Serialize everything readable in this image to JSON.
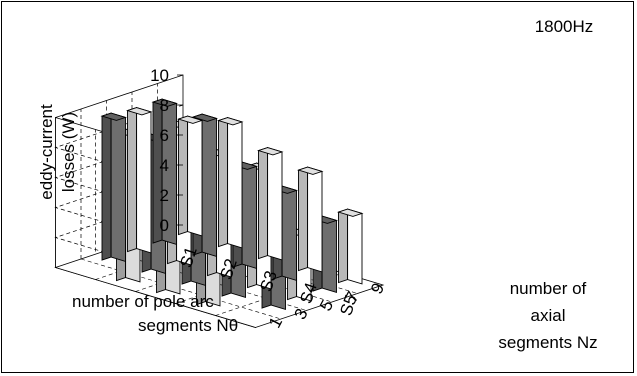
{
  "chart_data": {
    "type": "bar",
    "subtype": "3d-column",
    "annotation": "1800Hz",
    "zlabel_lines": [
      "eddy-current",
      "losses (W)"
    ],
    "x_axis_label_lines": [
      "number of pole arc",
      "segments Nθ"
    ],
    "y_axis_label_lines": [
      "number of",
      "axial",
      "segments Nz"
    ],
    "x_categories": [
      "S1",
      "S2",
      "S3",
      "S4",
      "S5"
    ],
    "y_categories": [
      "1",
      "3",
      "5",
      "7",
      "9"
    ],
    "zlim": [
      0,
      10
    ],
    "zticks": [
      "0",
      "2",
      "4",
      "6",
      "8",
      "10"
    ],
    "grid": true,
    "bar_fill_by_axial": [
      "#dcdcdc",
      "#6e6e6e",
      "#ffffff",
      "#6e6e6e",
      "#ffffff"
    ],
    "series": [
      {
        "name": "1",
        "values": [
          null,
          9.9,
          9.5,
          8.9,
          null
        ]
      },
      {
        "name": "3",
        "values": [
          9.6,
          9.0,
          9.4,
          8.9,
          6.0
        ]
      },
      {
        "name": "5",
        "values": [
          9.4,
          9.3,
          8.2,
          8.1,
          4.5
        ]
      },
      {
        "name": "7",
        "values": [
          9.4,
          9.2,
          6.8,
          6.0,
          4.8
        ]
      },
      {
        "name": "9",
        "values": [
          7.7,
          8.4,
          7.2,
          6.7,
          4.7
        ]
      }
    ]
  }
}
